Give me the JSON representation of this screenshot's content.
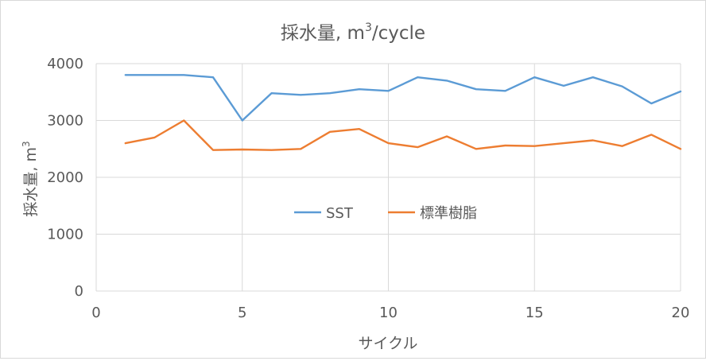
{
  "chart_data": {
    "type": "line",
    "title_main": "採水量, m",
    "title_sup": "3",
    "title_tail": "/cycle",
    "xlabel": "サイクル",
    "ylabel_main": "採水量, m",
    "ylabel_sup": "3",
    "xlim": [
      0,
      20
    ],
    "ylim": [
      0,
      4000
    ],
    "xticks": [
      0,
      5,
      10,
      15,
      20
    ],
    "yticks": [
      0,
      1000,
      2000,
      3000,
      4000
    ],
    "grid": true,
    "legend_position": "center",
    "x": [
      1,
      2,
      3,
      4,
      5,
      6,
      7,
      8,
      9,
      10,
      11,
      12,
      13,
      14,
      15,
      16,
      17,
      18,
      19,
      20
    ],
    "series": [
      {
        "name": "SST",
        "color": "#5b9bd5",
        "values": [
          3800,
          3800,
          3800,
          3760,
          3000,
          3480,
          3450,
          3480,
          3550,
          3520,
          3760,
          3700,
          3550,
          3520,
          3760,
          3610,
          3760,
          3600,
          3300,
          3510
        ]
      },
      {
        "name": "標準樹脂",
        "color": "#ed7d31",
        "values": [
          2600,
          2700,
          3000,
          2480,
          2490,
          2480,
          2500,
          2800,
          2850,
          2600,
          2530,
          2720,
          2500,
          2560,
          2550,
          2600,
          2650,
          2550,
          2750,
          2500
        ]
      }
    ]
  }
}
